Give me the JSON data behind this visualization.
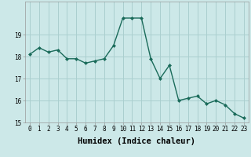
{
  "x": [
    0,
    1,
    2,
    3,
    4,
    5,
    6,
    7,
    8,
    9,
    10,
    11,
    12,
    13,
    14,
    15,
    16,
    17,
    18,
    19,
    20,
    21,
    22,
    23
  ],
  "y": [
    18.1,
    18.4,
    18.2,
    18.3,
    17.9,
    17.9,
    17.7,
    17.8,
    17.9,
    18.5,
    19.75,
    19.75,
    19.75,
    17.9,
    17.0,
    17.6,
    16.0,
    16.1,
    16.2,
    15.85,
    16.0,
    15.8,
    15.4,
    15.2
  ],
  "xlabel": "Humidex (Indice chaleur)",
  "line_color": "#1a6b5a",
  "marker": "D",
  "marker_size": 2.0,
  "bg_color": "#cce8e8",
  "grid_color": "#aacfcf",
  "ylim": [
    15,
    20.5
  ],
  "xlim": [
    -0.5,
    23.5
  ],
  "yticks": [
    15,
    16,
    17,
    18,
    19
  ],
  "xticks": [
    0,
    1,
    2,
    3,
    4,
    5,
    6,
    7,
    8,
    9,
    10,
    11,
    12,
    13,
    14,
    15,
    16,
    17,
    18,
    19,
    20,
    21,
    22,
    23
  ],
  "tick_fontsize": 5.5,
  "xlabel_fontsize": 7.5,
  "linewidth": 1.0
}
